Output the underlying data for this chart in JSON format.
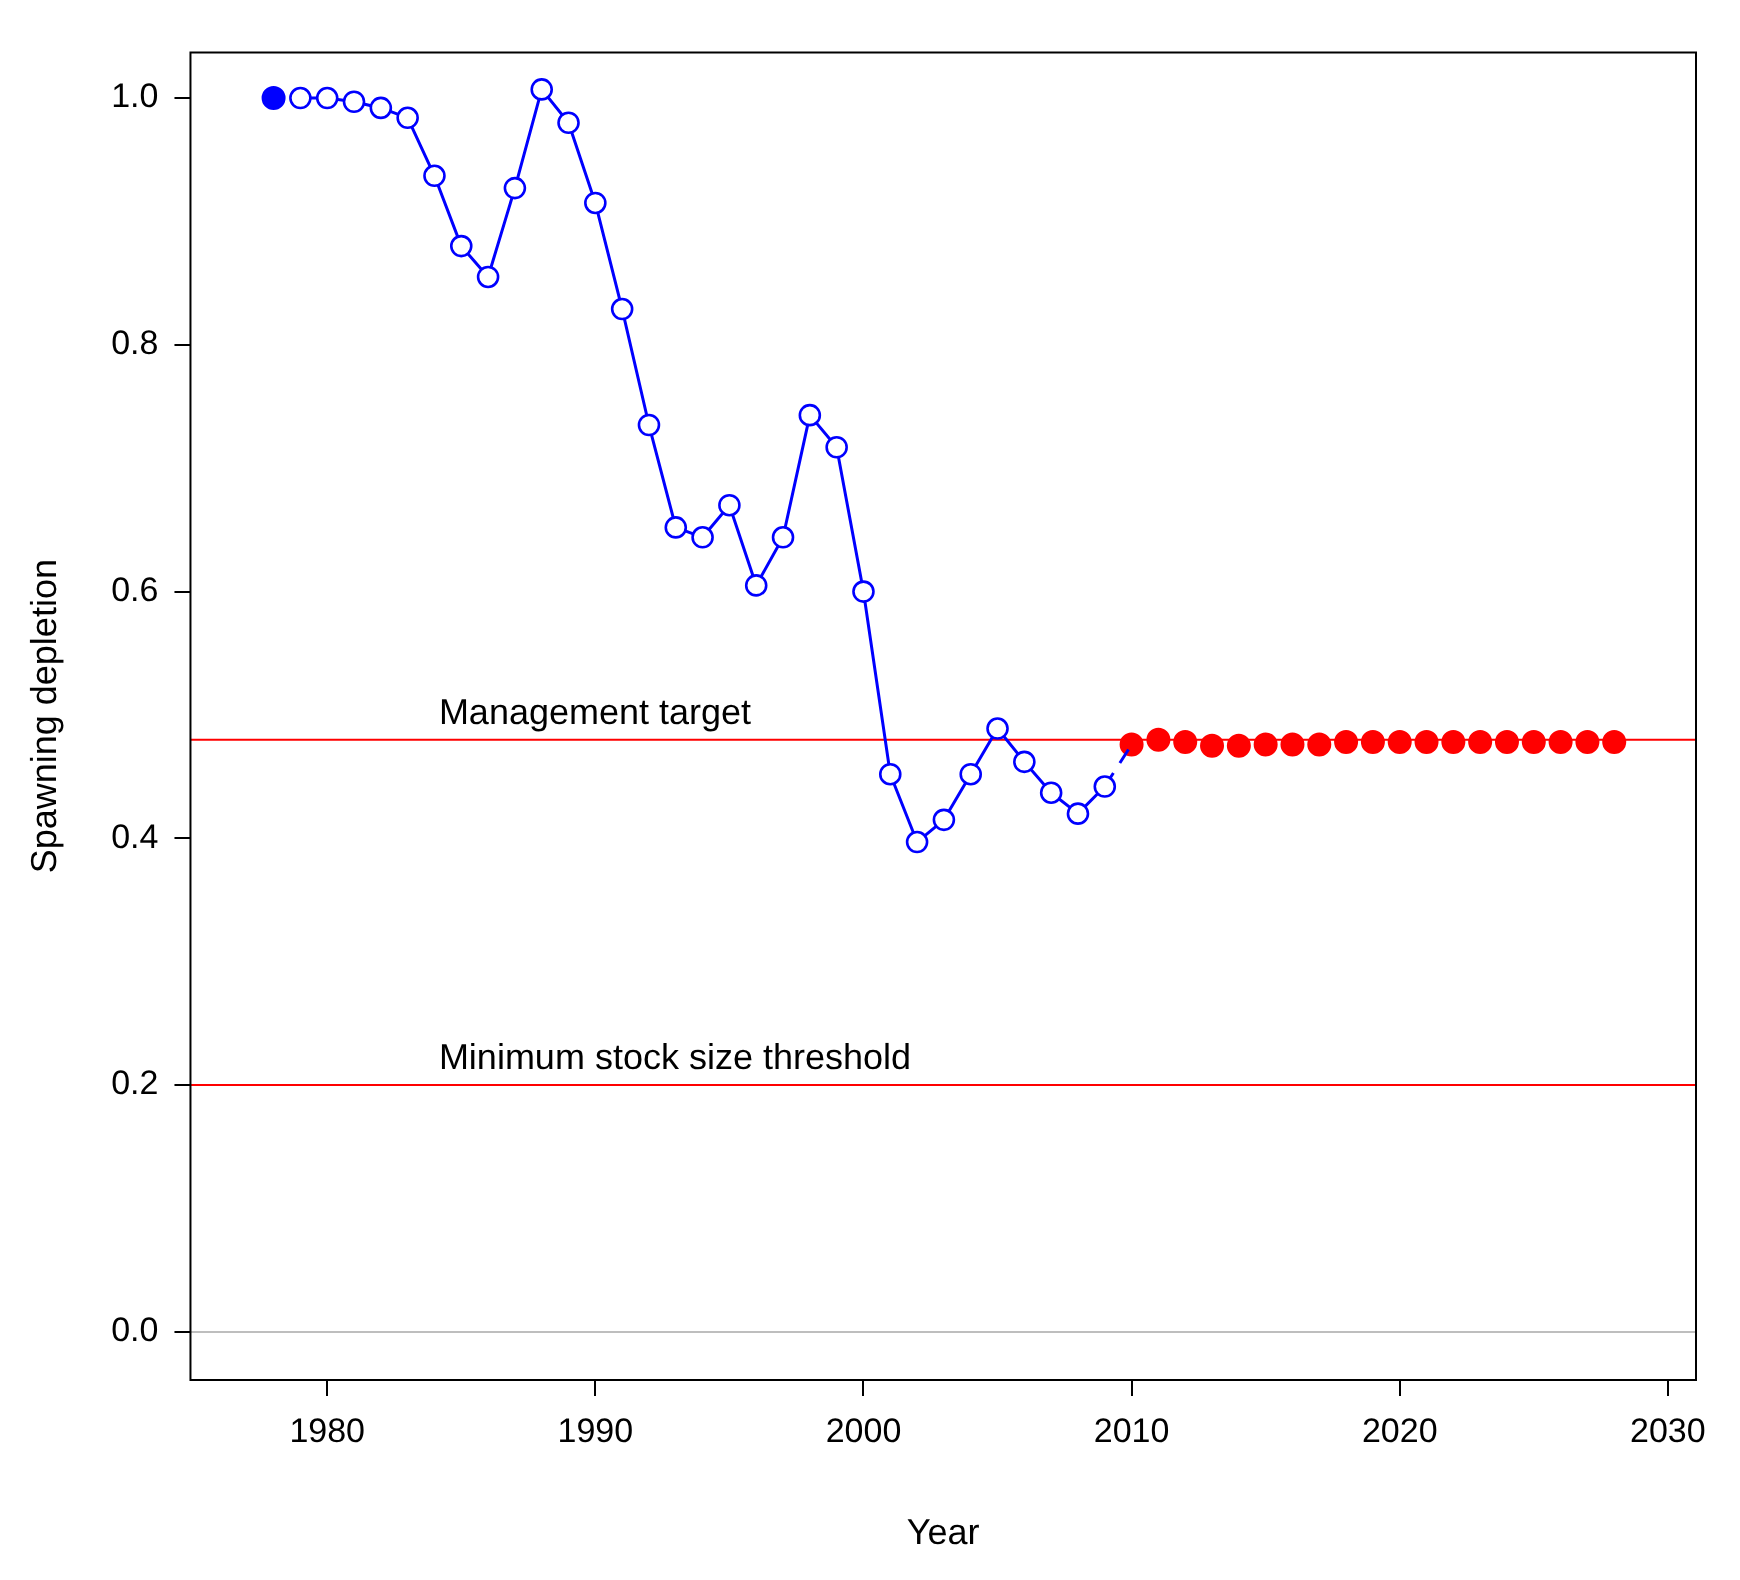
{
  "chart_data": {
    "type": "line",
    "xlabel": "Year",
    "ylabel": "Spawning depletion",
    "xlim": [
      1974.9,
      2031.05
    ],
    "ylim": [
      -0.039,
      1.037
    ],
    "xticks": [
      1980,
      1990,
      2000,
      2010,
      2020,
      2030
    ],
    "yticks": [
      {
        "value": 0,
        "label": "0.0"
      },
      0.2,
      0.4,
      0.6,
      0.8,
      {
        "value": 1,
        "label": "1.0"
      }
    ],
    "grid": false,
    "legend": false,
    "series": [
      {
        "type": "scatter",
        "color": "#0000ff",
        "marker": "circle",
        "x": [
          1978
        ],
        "values": [
          1.0
        ]
      },
      {
        "color": "#0000ff",
        "marker": "circle",
        "line_style": "solid",
        "x": [
          1979,
          1980,
          1981,
          1982,
          1983,
          1984,
          1985,
          1986,
          1987,
          1988,
          1989,
          1990,
          1991,
          1992,
          1993,
          1994,
          1995,
          1996,
          1997,
          1998,
          1999,
          2000,
          2001,
          2002,
          2003,
          2004,
          2005,
          2006,
          2007,
          2008,
          2009
        ],
        "values": [
          1.0,
          1.0,
          0.997,
          0.992,
          0.984,
          0.937,
          0.88,
          0.855,
          0.927,
          1.007,
          0.98,
          0.915,
          0.829,
          0.735,
          0.652,
          0.644,
          0.67,
          0.605,
          0.644,
          0.743,
          0.717,
          0.6,
          0.452,
          0.397,
          0.415,
          0.452,
          0.489,
          0.462,
          0.437,
          0.42,
          0.442
        ]
      },
      {
        "type": "line",
        "color": "#0000ff",
        "marker": "none",
        "line_style": "dashed",
        "x": [
          2009,
          2010
        ],
        "values": [
          0.442,
          0.476
        ]
      },
      {
        "type": "scatter",
        "color": "#ff0000",
        "marker": "circle",
        "x": [
          2010,
          2011,
          2012,
          2013,
          2014,
          2015,
          2016,
          2017,
          2018,
          2019,
          2020,
          2021,
          2022,
          2023,
          2024,
          2025,
          2026,
          2027,
          2028
        ],
        "values": [
          0.476,
          0.48,
          0.478,
          0.475,
          0.475,
          0.476,
          0.476,
          0.476,
          0.478,
          0.478,
          0.478,
          0.478,
          0.478,
          0.478,
          0.478,
          0.478,
          0.478,
          0.478,
          0.478
        ]
      }
    ],
    "ref_lines": [
      {
        "axis": "y",
        "value": 0.48,
        "label": "Management target",
        "color": "#ff0000"
      },
      {
        "axis": "y",
        "value": 0.2,
        "label": "Minimum stock size threshold",
        "color": "#ff0000"
      },
      {
        "axis": "y",
        "value": 0,
        "label": null,
        "color": "#bebebe"
      }
    ]
  }
}
